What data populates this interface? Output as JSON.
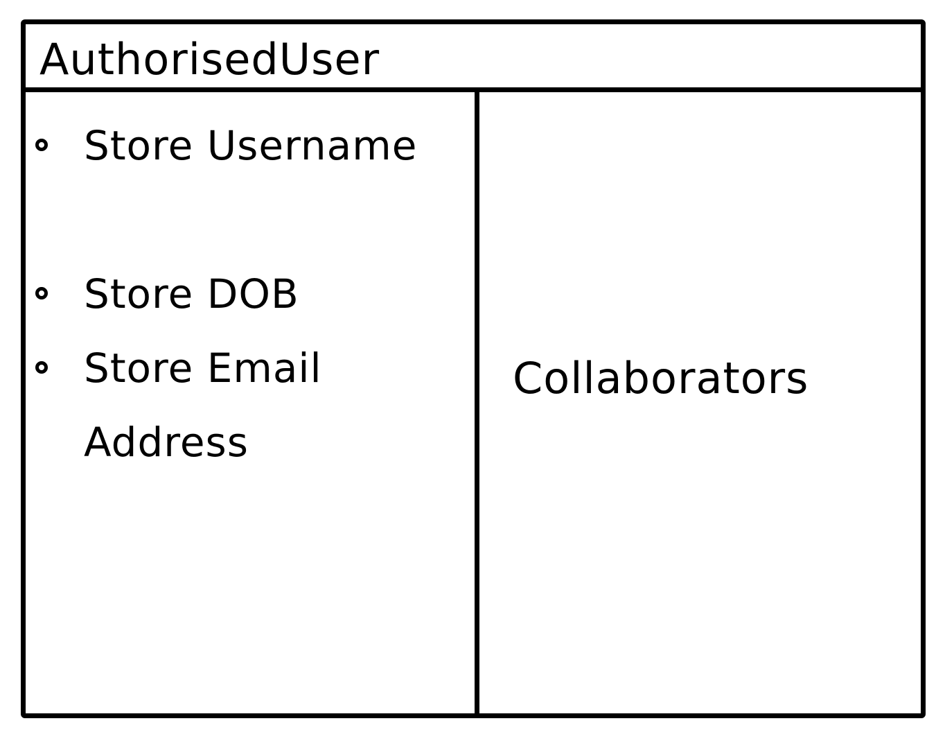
{
  "card": {
    "class_name": "AuthorisedUser",
    "responsibilities": [
      {
        "text": "Store Username"
      },
      {
        "text": "Store DOB"
      },
      {
        "text": "Store Email Address"
      }
    ],
    "collaborators_label": "Collaborators"
  },
  "colors": {
    "ink": "#000000",
    "background": "#ffffff"
  }
}
